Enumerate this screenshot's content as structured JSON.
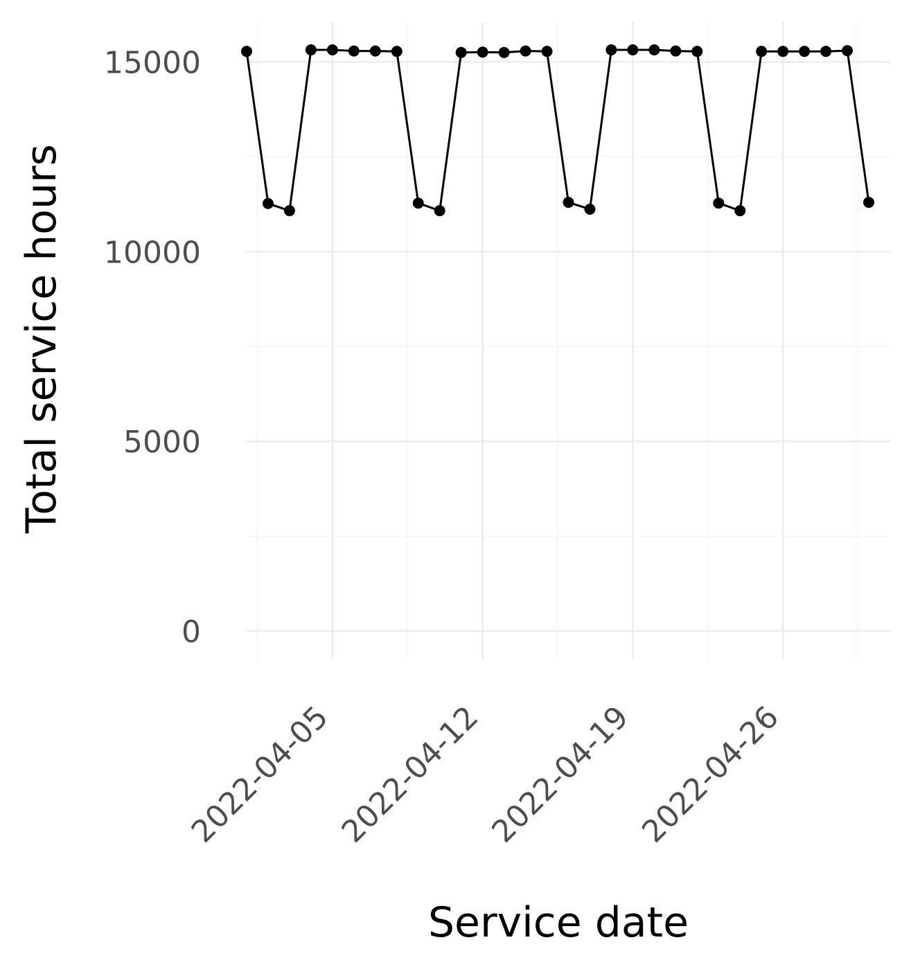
{
  "chart_data": {
    "type": "line",
    "xlabel": "Service date",
    "ylabel": "Total service hours",
    "x_type": "date",
    "x_ticks": [
      "2022-04-05",
      "2022-04-12",
      "2022-04-19",
      "2022-04-26"
    ],
    "y_ticks": [
      0,
      5000,
      10000,
      15000
    ],
    "ylim": [
      -750,
      16050
    ],
    "xlim": [
      "2022-04-01",
      "2022-05-01"
    ],
    "grid": true,
    "legend": "none",
    "series": [
      {
        "x": [
          "2022-04-01",
          "2022-04-02",
          "2022-04-03",
          "2022-04-04",
          "2022-04-05",
          "2022-04-06",
          "2022-04-07",
          "2022-04-08",
          "2022-04-09",
          "2022-04-10",
          "2022-04-11",
          "2022-04-12",
          "2022-04-13",
          "2022-04-14",
          "2022-04-15",
          "2022-04-16",
          "2022-04-17",
          "2022-04-18",
          "2022-04-19",
          "2022-04-20",
          "2022-04-21",
          "2022-04-22",
          "2022-04-23",
          "2022-04-24",
          "2022-04-25",
          "2022-04-26",
          "2022-04-27",
          "2022-04-28",
          "2022-04-29",
          "2022-04-30"
        ],
        "values": [
          15280,
          11270,
          11080,
          15320,
          15320,
          15290,
          15290,
          15280,
          11280,
          11080,
          15250,
          15260,
          15250,
          15290,
          15280,
          11300,
          11120,
          15320,
          15320,
          15320,
          15290,
          15280,
          11280,
          11080,
          15280,
          15280,
          15280,
          15280,
          15300,
          11300
        ]
      }
    ],
    "colors": {
      "line": "#000000",
      "point": "#000000",
      "grid_major": "#ebebeb",
      "grid_minor": "#f5f5f5",
      "tick_text": "#4d4d4d"
    }
  }
}
